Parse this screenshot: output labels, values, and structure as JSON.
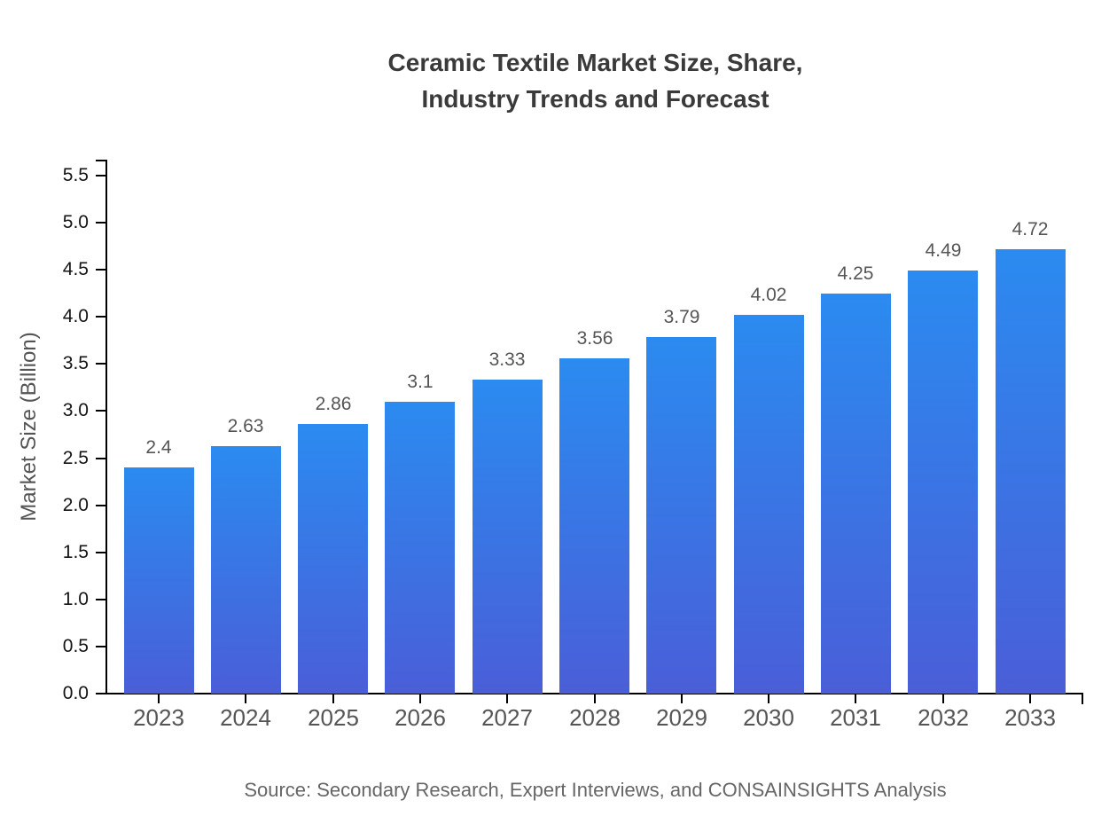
{
  "figure": {
    "title_line1": "Ceramic Textile Market Size, Share,",
    "title_line2": "Industry Trends and Forecast",
    "source": "Source: Secondary Research, Expert Interviews, and CONSAINSIGHTS Analysis"
  },
  "chart_data": {
    "type": "bar",
    "title": "Ceramic Textile Market Size, Share, Industry Trends and Forecast",
    "categories": [
      "2023",
      "2024",
      "2025",
      "2026",
      "2027",
      "2028",
      "2029",
      "2030",
      "2031",
      "2032",
      "2033"
    ],
    "values": [
      2.4,
      2.63,
      2.86,
      3.1,
      3.33,
      3.56,
      3.79,
      4.02,
      4.25,
      4.49,
      4.72
    ],
    "bar_labels": [
      "2.4",
      "2.63",
      "2.86",
      "3.1",
      "3.33",
      "3.56",
      "3.79",
      "4.02",
      "4.25",
      "4.49",
      "4.72"
    ],
    "xlabel": "",
    "ylabel": "Market Size (Billion)",
    "ylim": [
      0,
      5.65
    ],
    "yticks": [
      0.0,
      0.5,
      1.0,
      1.5,
      2.0,
      2.5,
      3.0,
      3.5,
      4.0,
      4.5,
      5.0,
      5.5
    ],
    "ytick_labels": [
      "0.0",
      "0.5",
      "1.0",
      "1.5",
      "2.0",
      "2.5",
      "3.0",
      "3.5",
      "4.0",
      "4.5",
      "5.0",
      "5.5"
    ],
    "grid": false,
    "legend": "none",
    "source": "Source: Secondary Research, Expert Interviews, and CONSAINSIGHTS Analysis",
    "colors": {
      "bar_gradient_top": "#2b8bf0",
      "bar_gradient_bottom": "#4a5ed8",
      "axis": "#000000",
      "title_text": "#3a3a3a",
      "ytick_text": "#141414",
      "xtick_text": "#555555",
      "bar_label_text": "#555555",
      "muted_text": "#666666"
    }
  }
}
